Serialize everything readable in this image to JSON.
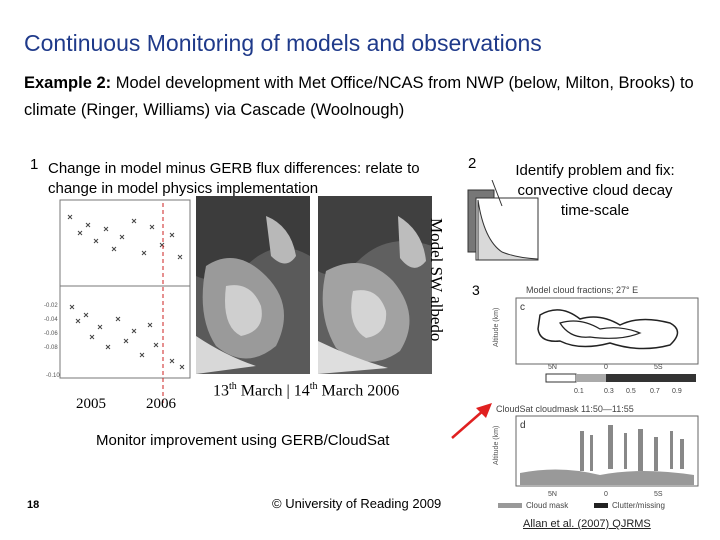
{
  "slide": {
    "title": "Continuous Monitoring of models and observations",
    "example_label": "Example 2:",
    "example_text": " Model development with Met Office/NCAS from NWP (below, Milton, Brooks) to climate (Ringer, Williams) via Cascade (Woolnough)",
    "panel1": {
      "number": "1",
      "caption": "Change in model minus GERB flux differences: relate to change in model physics implementation",
      "year_a": "2005",
      "year_b": "2006",
      "dates_13": "13",
      "dates_th1": "th",
      "dates_mid": " March | 14",
      "dates_th2": "th",
      "dates_end": " March 2006",
      "albedo_label": "Model SW albedo"
    },
    "panel2": {
      "number": "2",
      "caption": "Identify problem and fix: convective cloud decay time-scale"
    },
    "panel3": {
      "number": "3",
      "top_title": "Model cloud fractions; 27° E",
      "top_letter": "c",
      "bottom_title": "CloudSat cloudmask 11:50—11:55",
      "bottom_letter": "d",
      "ylabel": "Altitude (km)",
      "colorbar_ticks": [
        "0.1",
        "0.3",
        "0.5",
        "0.7",
        "0.9"
      ],
      "lat_ticks": [
        "5N",
        "0",
        "5S"
      ],
      "legend_cloud": "Cloud mask",
      "legend_clutter": "Clutter/missing"
    },
    "monitor_text": "Monitor improvement using GERB/CloudSat",
    "slide_number": "18",
    "copyright": "© University of Reading 2009",
    "reference": "Allan et al. (2007) QJRMS",
    "colors": {
      "title": "#1f3a8a",
      "arrow": "#e02020",
      "dashed_line": "#cc2222"
    }
  }
}
